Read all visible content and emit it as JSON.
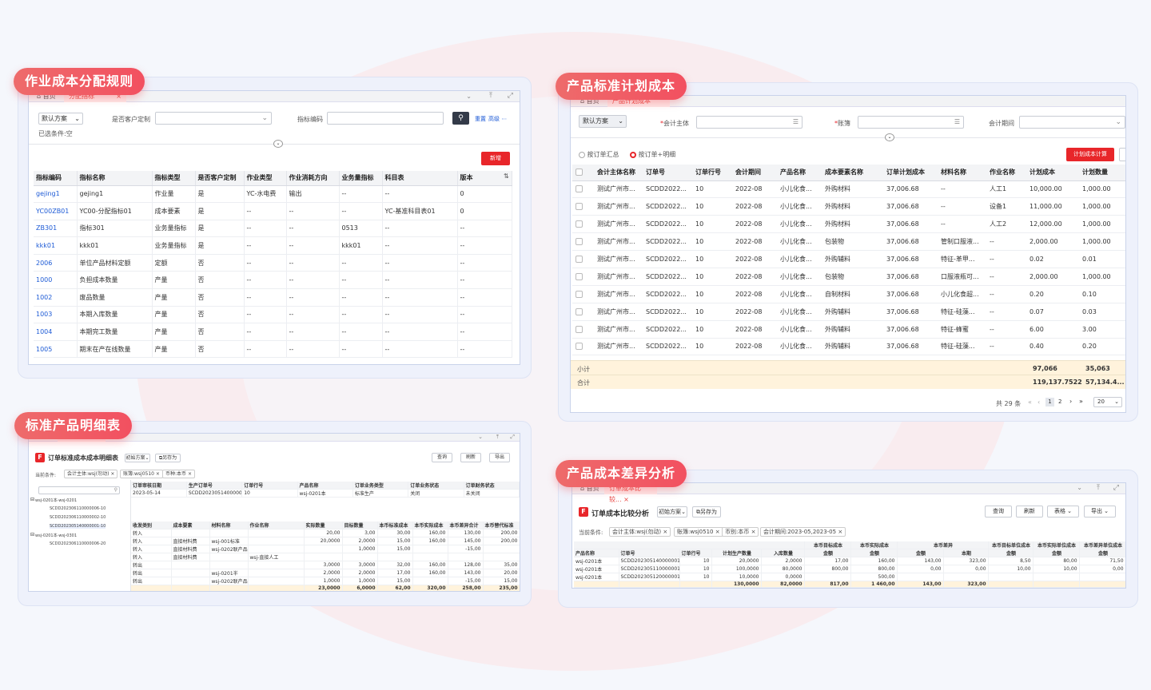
{
  "panels": {
    "p1": {
      "title": "作业成本分配规则",
      "tabs": [
        "首页",
        "分配指标"
      ],
      "filters": {
        "scheme": "默认方案",
        "customer_label": "是否客户定制",
        "metric_code_label": "指标编码",
        "reset": "重置",
        "advanced": "高级",
        "selected": "已选条件:空"
      },
      "add_button": "新增",
      "columns": [
        "指标编码",
        "指标名称",
        "指标类型",
        "是否客户定制",
        "作业类型",
        "作业消耗方向",
        "业务量指标",
        "科目表",
        "版本"
      ],
      "rows": [
        [
          "gejing1",
          "gejing1",
          "作业量",
          "是",
          "YC-水电费",
          "输出",
          "--",
          "--",
          "0"
        ],
        [
          "YC00ZB01",
          "YC00-分配指标01",
          "成本要素",
          "是",
          "--",
          "--",
          "--",
          "YC-基准科目表01",
          "0"
        ],
        [
          "ZB301",
          "指标301",
          "业务量指标",
          "是",
          "--",
          "--",
          "0513",
          "--",
          "--"
        ],
        [
          "kkk01",
          "kkk01",
          "业务量指标",
          "是",
          "--",
          "--",
          "kkk01",
          "--",
          "--"
        ],
        [
          "2006",
          "单位产品材料定额",
          "定额",
          "否",
          "--",
          "--",
          "--",
          "--",
          "--"
        ],
        [
          "1000",
          "负担成本数量",
          "产量",
          "否",
          "--",
          "--",
          "--",
          "--",
          "--"
        ],
        [
          "1002",
          "废品数量",
          "产量",
          "否",
          "--",
          "--",
          "--",
          "--",
          "--"
        ],
        [
          "1003",
          "本期入库数量",
          "产量",
          "否",
          "--",
          "--",
          "--",
          "--",
          "--"
        ],
        [
          "1004",
          "本期完工数量",
          "产量",
          "否",
          "--",
          "--",
          "--",
          "--",
          "--"
        ],
        [
          "1005",
          "期末在产在线数量",
          "产量",
          "否",
          "--",
          "--",
          "--",
          "--",
          "--"
        ]
      ]
    },
    "p2": {
      "title": "产品标准计划成本",
      "tabs": [
        "首页",
        "产品计划成本"
      ],
      "filters": {
        "scheme": "默认方案",
        "entity_label": "会计主体",
        "book_label": "账簿",
        "period_label": "会计期间"
      },
      "radio1": "按订单汇总",
      "radio2": "按订单+明细",
      "calc_button": "计划成本计算",
      "columns": [
        "会计主体名称",
        "订单号",
        "订单行号",
        "会计期间",
        "产品名称",
        "成本要素名称",
        "订单计划成本",
        "材料名称",
        "作业名称",
        "计划成本",
        "计划数量"
      ],
      "rows": [
        [
          "测试广州市...",
          "SCDD2022...",
          "10",
          "2022-08",
          "小儿化食...",
          "外购材料",
          "37,006.68",
          "--",
          "人工1",
          "10,000.00",
          "1,000.00"
        ],
        [
          "测试广州市...",
          "SCDD2022...",
          "10",
          "2022-08",
          "小儿化食...",
          "外购材料",
          "37,006.68",
          "--",
          "设备1",
          "11,000.00",
          "1,000.00"
        ],
        [
          "测试广州市...",
          "SCDD2022...",
          "10",
          "2022-08",
          "小儿化食...",
          "外购材料",
          "37,006.68",
          "--",
          "人工2",
          "12,000.00",
          "1,000.00"
        ],
        [
          "测试广州市...",
          "SCDD2022...",
          "10",
          "2022-08",
          "小儿化食...",
          "包装物",
          "37,006.68",
          "管制口服液...",
          "--",
          "2,000.00",
          "1,000.00"
        ],
        [
          "测试广州市...",
          "SCDD2022...",
          "10",
          "2022-08",
          "小儿化食...",
          "外购辅料",
          "37,006.68",
          "特征-革甲...",
          "--",
          "0.02",
          "0.01"
        ],
        [
          "测试广州市...",
          "SCDD2022...",
          "10",
          "2022-08",
          "小儿化食...",
          "包装物",
          "37,006.68",
          "口服液瓶可...",
          "--",
          "2,000.00",
          "1,000.00"
        ],
        [
          "测试广州市...",
          "SCDD2022...",
          "10",
          "2022-08",
          "小儿化食...",
          "自制材料",
          "37,006.68",
          "小儿化食超...",
          "--",
          "0.20",
          "0.10"
        ],
        [
          "测试广州市...",
          "SCDD2022...",
          "10",
          "2022-08",
          "小儿化食...",
          "外购辅料",
          "37,006.68",
          "特征-硅藻...",
          "--",
          "0.07",
          "0.03"
        ],
        [
          "测试广州市...",
          "SCDD2022...",
          "10",
          "2022-08",
          "小儿化食...",
          "外购辅料",
          "37,006.68",
          "特征-蜂蜜",
          "--",
          "6.00",
          "3.00"
        ],
        [
          "测试广州市...",
          "SCDD2022...",
          "10",
          "2022-08",
          "小儿化食...",
          "外购辅料",
          "37,006.68",
          "特征-硅藻...",
          "--",
          "0.40",
          "0.20"
        ]
      ],
      "subtotal": {
        "label": "小计",
        "plan_cost": "97,066",
        "plan_qty": "35,063"
      },
      "total": {
        "label": "合计",
        "plan_cost": "119,137.7522",
        "plan_qty": "57,134.4..."
      },
      "pager": {
        "total": "共 29 条",
        "page1": "1",
        "page2": "2",
        "size": "20"
      }
    },
    "p3": {
      "title": "标准产品明细表",
      "tabs": [
        "首页",
        "订单成本明细表"
      ],
      "report_title": "订单标准成本成本明细表",
      "scheme": "初始方案",
      "save_as": "另存为",
      "buttons": [
        "查询",
        "刷新",
        "导出"
      ],
      "cond_label": "当前条件:",
      "chips": [
        "会计主体:wsj(勿动)",
        "账簿:wsj0510",
        "币种:本币"
      ],
      "tree": [
        "wsj-0201本-wsj-0201",
        "SCDD202306110000006-10",
        "SCDD202306110000002-10",
        "SCDD202305140000001-10",
        "wsj-0201本-wsj-0301",
        "SCDD202306110000006-20"
      ],
      "head1": [
        "订单审核日期",
        "生产订单号",
        "订单行号",
        "产品名称",
        "订单业务类型",
        "订单业务状态",
        "订单财务状态"
      ],
      "head1_vals": [
        "2023-05-14",
        "SCDD202305140000001",
        "10",
        "wsj-0201本",
        "标准生产",
        "关闭",
        "未关闭"
      ],
      "head2": [
        "收发类别",
        "成本要素",
        "材料名称",
        "作业名称",
        "实际数量",
        "目标数量",
        "本币标准成本",
        "本币实际成本",
        "本币差异合计",
        "本币替代标准"
      ],
      "rows": [
        [
          "转入",
          "",
          "",
          "",
          "20,00",
          "3,00",
          "30,00",
          "160,00",
          "130,00",
          "200,00"
        ],
        [
          "转入",
          "直接材料费",
          "wsj-001标准",
          "",
          "20,0000",
          "2,0000",
          "15,00",
          "160,00",
          "145,00",
          "200,00"
        ],
        [
          "转入",
          "直接材料费",
          "wsj-0202联产品",
          "",
          "",
          "1,0000",
          "15,00",
          "",
          "-15,00",
          ""
        ],
        [
          "转入",
          "直接材料费",
          "",
          "wsj-直接人工",
          "",
          "",
          "",
          "",
          "",
          ""
        ],
        [
          "转出",
          "",
          "",
          "",
          "3,0000",
          "3,0000",
          "32,00",
          "160,00",
          "128,00",
          "35,00"
        ],
        [
          "转出",
          "",
          "wsj-0201半",
          "",
          "2,0000",
          "2,0000",
          "17,00",
          "160,00",
          "143,00",
          "20,00"
        ],
        [
          "转出",
          "",
          "wsj-0202联产品",
          "",
          "1,0000",
          "1,0000",
          "15,00",
          "",
          "-15,00",
          "15,00"
        ]
      ],
      "total": [
        "23,0000",
        "6,0000",
        "62,00",
        "320,00",
        "258,00",
        "235,00"
      ]
    },
    "p4": {
      "title": "产品成本差异分析",
      "tabs": [
        "首页",
        "订单成本比较..."
      ],
      "report_title": "订单成本比较分析",
      "scheme": "初始方案",
      "save_as": "另存为",
      "buttons": [
        "查询",
        "刷新",
        "表格",
        "导出"
      ],
      "cond_label": "当前条件:",
      "chips": [
        "会计主体:wsj(勿动)",
        "账簿:wsj0510",
        "币别:本币",
        "会计期间:2023-05,2023-05"
      ],
      "head_top": [
        "本币目标成本",
        "本币实际成本",
        "本币差异",
        "本币目标单位成本",
        "本币实际单位成本",
        "本币差异单位成本"
      ],
      "head": [
        "产品名称",
        "订单号",
        "订单行号",
        "计划生产数量",
        "入库数量",
        "金额",
        "金额",
        "金额",
        "本期",
        "金额",
        "金额",
        "金额"
      ],
      "rows": [
        [
          "wsj-0201本",
          "SCDD202305140000001",
          "10",
          "20,0000",
          "2,0000",
          "17,00",
          "160,00",
          "143,00",
          "323,00",
          "8,50",
          "80,00",
          "71,50"
        ],
        [
          "wsj-0201本",
          "SCDD202305110000001",
          "10",
          "100,0000",
          "80,0000",
          "800,00",
          "800,00",
          "0,00",
          "0,00",
          "10,00",
          "10,00",
          "0,00"
        ],
        [
          "wsj-0201本",
          "SCDD202305120000001",
          "10",
          "10,0000",
          "0,0000",
          "",
          "500,00",
          "",
          "",
          "",
          "",
          ""
        ]
      ],
      "total": [
        "130,0000",
        "82,0000",
        "817,00",
        "1 460,00",
        "143,00",
        "323,00"
      ]
    }
  }
}
